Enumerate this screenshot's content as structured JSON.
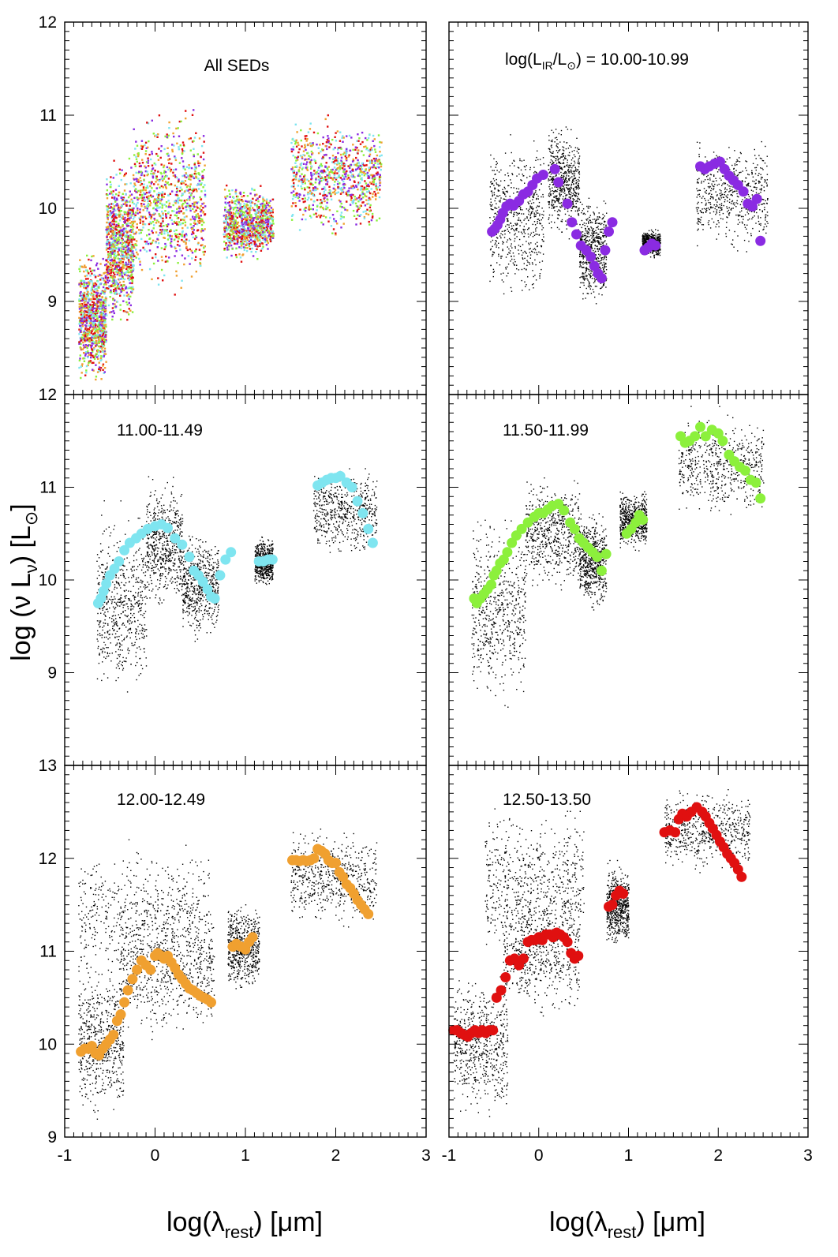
{
  "figure": {
    "ylabel_main": "log (ν L",
    "ylabel_sub": "ν",
    "ylabel_tail": ") [L",
    "ylabel_sun": "⊙",
    "ylabel_end": "]",
    "xlabel_left_main": "log(λ",
    "xlabel_left_sub": "rest",
    "xlabel_left_tail": ") [μm]",
    "xlabel_right_main": "log(λ",
    "xlabel_right_sub": "rest",
    "xlabel_right_tail": ") [μm]"
  },
  "chart_data": [
    {
      "type": "scatter",
      "panel": "top-left",
      "title": "All SEDs",
      "xlim": [
        -1,
        3
      ],
      "ylim": [
        8,
        12
      ],
      "yticks": [
        "9",
        "10",
        "11",
        "12"
      ],
      "xticks": [],
      "cloud": [
        {
          "x0": -0.85,
          "x1": -0.55,
          "ylo": 8.05,
          "yhi": 9.6
        },
        {
          "x0": -0.55,
          "x1": -0.25,
          "ylo": 8.6,
          "yhi": 10.6
        },
        {
          "x0": -0.25,
          "x1": 0.55,
          "ylo": 9.0,
          "yhi": 11.2
        },
        {
          "x0": 0.75,
          "x1": 1.3,
          "ylo": 9.4,
          "yhi": 10.3
        },
        {
          "x0": 1.5,
          "x1": 2.5,
          "ylo": 9.6,
          "yhi": 11.1
        }
      ],
      "series": [
        {
          "name": "10.00-10.99",
          "color": "#8a2be2"
        },
        {
          "name": "11.00-11.49",
          "color": "#7fe5f0"
        },
        {
          "name": "11.50-11.99",
          "color": "#8cf03c"
        },
        {
          "name": "12.00-12.49",
          "color": "#f0a030"
        },
        {
          "name": "12.50-13.50",
          "color": "#e01010"
        }
      ]
    },
    {
      "type": "scatter",
      "panel": "top-right",
      "title": "log(L",
      "title_sub": "IR",
      "title_mid": "/L",
      "title_sun": "⊙",
      "title_tail": ") = 10.00-10.99",
      "xlim": [
        -1,
        3
      ],
      "ylim": [
        8,
        12
      ],
      "yticks": [],
      "xticks": [],
      "color": "#8a2be2",
      "cloud": [
        {
          "x0": -0.55,
          "x1": 0.05,
          "ylo": 8.9,
          "yhi": 10.9
        },
        {
          "x0": 0.1,
          "x1": 0.45,
          "ylo": 9.6,
          "yhi": 11.0
        },
        {
          "x0": 0.45,
          "x1": 0.75,
          "ylo": 8.9,
          "yhi": 10.2
        },
        {
          "x0": 1.15,
          "x1": 1.35,
          "ylo": 9.45,
          "yhi": 9.8
        },
        {
          "x0": 1.75,
          "x1": 2.55,
          "ylo": 9.5,
          "yhi": 10.8
        }
      ],
      "x": [
        -0.52,
        -0.49,
        -0.46,
        -0.43,
        -0.4,
        -0.36,
        -0.32,
        -0.28,
        -0.22,
        -0.17,
        -0.12,
        -0.07,
        -0.02,
        0.05,
        0.18,
        0.22,
        0.32,
        0.37,
        0.42,
        0.47,
        0.53,
        0.58,
        0.62,
        0.66,
        0.7,
        0.74,
        0.78,
        0.82,
        1.18,
        1.22,
        1.26,
        1.3,
        1.8,
        1.85,
        1.9,
        1.96,
        2.02,
        2.07,
        2.12,
        2.17,
        2.22,
        2.28,
        2.33,
        2.38,
        2.43,
        2.47
      ],
      "y": [
        9.75,
        9.78,
        9.82,
        9.88,
        9.95,
        10.02,
        10.05,
        10.03,
        10.08,
        10.15,
        10.18,
        10.25,
        10.32,
        10.36,
        10.42,
        10.28,
        10.05,
        9.85,
        9.72,
        9.6,
        9.55,
        9.48,
        9.38,
        9.3,
        9.25,
        9.55,
        9.75,
        9.85,
        9.55,
        9.58,
        9.62,
        9.6,
        10.45,
        10.42,
        10.45,
        10.48,
        10.5,
        10.42,
        10.35,
        10.3,
        10.25,
        10.18,
        10.05,
        10.02,
        10.1,
        9.65
      ]
    },
    {
      "type": "scatter",
      "panel": "middle-left",
      "title": "11.00-11.49",
      "xlim": [
        -1,
        3
      ],
      "ylim": [
        8,
        12
      ],
      "yticks": [
        "9",
        "10",
        "11",
        "12"
      ],
      "xticks": [],
      "color": "#7fe5f0",
      "cloud": [
        {
          "x0": -0.65,
          "x1": -0.1,
          "ylo": 8.6,
          "yhi": 10.9
        },
        {
          "x0": -0.1,
          "x1": 0.3,
          "ylo": 9.6,
          "yhi": 11.2
        },
        {
          "x0": 0.3,
          "x1": 0.7,
          "ylo": 9.3,
          "yhi": 10.6
        },
        {
          "x0": 1.1,
          "x1": 1.3,
          "ylo": 9.9,
          "yhi": 10.5
        },
        {
          "x0": 1.75,
          "x1": 2.45,
          "ylo": 10.2,
          "yhi": 11.3
        }
      ],
      "x": [
        -0.63,
        -0.6,
        -0.57,
        -0.54,
        -0.5,
        -0.45,
        -0.4,
        -0.34,
        -0.28,
        -0.21,
        -0.15,
        -0.08,
        0.0,
        0.07,
        0.14,
        0.22,
        0.3,
        0.38,
        0.43,
        0.48,
        0.53,
        0.58,
        0.62,
        0.66,
        0.72,
        0.78,
        0.84,
        1.15,
        1.2,
        1.25,
        1.3,
        1.8,
        1.85,
        1.9,
        1.95,
        2.0,
        2.05,
        2.12,
        2.18,
        2.24,
        2.3,
        2.36,
        2.41
      ],
      "y": [
        9.75,
        9.8,
        9.88,
        9.96,
        10.05,
        10.12,
        10.2,
        10.32,
        10.4,
        10.45,
        10.5,
        10.55,
        10.58,
        10.6,
        10.56,
        10.45,
        10.38,
        10.25,
        10.1,
        10.05,
        9.98,
        9.9,
        9.82,
        9.8,
        10.05,
        10.22,
        10.3,
        10.2,
        10.2,
        10.22,
        10.22,
        11.02,
        11.05,
        11.08,
        11.1,
        11.1,
        11.12,
        11.05,
        11.0,
        10.85,
        10.72,
        10.55,
        10.4
      ]
    },
    {
      "type": "scatter",
      "panel": "middle-right",
      "title": "11.50-11.99",
      "xlim": [
        -1,
        3
      ],
      "ylim": [
        8,
        12
      ],
      "yticks": [],
      "xticks": [],
      "color": "#8cf03c",
      "cloud": [
        {
          "x0": -0.75,
          "x1": -0.15,
          "ylo": 8.5,
          "yhi": 10.9
        },
        {
          "x0": -0.15,
          "x1": 0.45,
          "ylo": 9.8,
          "yhi": 11.2
        },
        {
          "x0": 0.45,
          "x1": 0.75,
          "ylo": 9.6,
          "yhi": 10.8
        },
        {
          "x0": 0.9,
          "x1": 1.2,
          "ylo": 10.3,
          "yhi": 11.0
        },
        {
          "x0": 1.55,
          "x1": 2.5,
          "ylo": 10.6,
          "yhi": 11.9
        }
      ],
      "x": [
        -0.72,
        -0.69,
        -0.65,
        -0.61,
        -0.57,
        -0.53,
        -0.5,
        -0.47,
        -0.43,
        -0.39,
        -0.35,
        -0.3,
        -0.25,
        -0.19,
        -0.12,
        -0.05,
        0.0,
        0.05,
        0.1,
        0.15,
        0.22,
        0.28,
        0.35,
        0.4,
        0.45,
        0.5,
        0.55,
        0.6,
        0.65,
        0.7,
        0.75,
        0.98,
        1.03,
        1.08,
        1.12,
        1.16,
        1.58,
        1.63,
        1.68,
        1.74,
        1.8,
        1.86,
        1.93,
        2.0,
        2.05,
        2.12,
        2.18,
        2.24,
        2.3,
        2.36,
        2.42,
        2.47
      ],
      "y": [
        9.8,
        9.75,
        9.8,
        9.85,
        9.9,
        9.95,
        10.05,
        10.1,
        10.18,
        10.22,
        10.3,
        10.4,
        10.48,
        10.55,
        10.62,
        10.68,
        10.72,
        10.72,
        10.76,
        10.8,
        10.82,
        10.75,
        10.62,
        10.55,
        10.45,
        10.4,
        10.35,
        10.3,
        10.25,
        10.1,
        10.28,
        10.5,
        10.55,
        10.62,
        10.7,
        10.65,
        11.55,
        11.48,
        11.5,
        11.55,
        11.65,
        11.55,
        11.62,
        11.58,
        11.5,
        11.35,
        11.28,
        11.22,
        11.18,
        11.08,
        11.05,
        10.88
      ]
    },
    {
      "type": "scatter",
      "panel": "bottom-left",
      "title": "12.00-12.49",
      "xlim": [
        -1,
        3
      ],
      "ylim": [
        9,
        13
      ],
      "yticks": [
        "9",
        "10",
        "11",
        "12",
        "13"
      ],
      "xticks": [
        "-1",
        "0",
        "1",
        "2",
        "3"
      ],
      "color": "#f0a030",
      "cloud": [
        {
          "x0": -0.85,
          "x1": -0.35,
          "ylo": 9.1,
          "yhi": 11.0
        },
        {
          "x0": -0.4,
          "x1": 0.65,
          "ylo": 10.0,
          "yhi": 11.6
        },
        {
          "x0": -0.85,
          "x1": 0.6,
          "ylo": 10.5,
          "yhi": 12.3
        },
        {
          "x0": 0.8,
          "x1": 1.15,
          "ylo": 10.5,
          "yhi": 11.6
        },
        {
          "x0": 1.5,
          "x1": 2.45,
          "ylo": 11.2,
          "yhi": 12.4
        }
      ],
      "x": [
        -0.82,
        -0.78,
        -0.74,
        -0.7,
        -0.66,
        -0.62,
        -0.58,
        -0.54,
        -0.5,
        -0.46,
        -0.42,
        -0.38,
        -0.34,
        -0.3,
        -0.25,
        -0.2,
        -0.15,
        -0.1,
        -0.05,
        0.0,
        0.03,
        0.07,
        0.1,
        0.14,
        0.18,
        0.22,
        0.26,
        0.3,
        0.34,
        0.38,
        0.42,
        0.46,
        0.5,
        0.54,
        0.58,
        0.62,
        0.86,
        0.9,
        0.95,
        1.0,
        1.04,
        1.08,
        1.52,
        1.56,
        1.6,
        1.64,
        1.68,
        1.72,
        1.76,
        1.8,
        1.84,
        1.88,
        1.92,
        1.96,
        2.0,
        2.04,
        2.08,
        2.12,
        2.16,
        2.2,
        2.24,
        2.28,
        2.32,
        2.36
      ],
      "y": [
        9.92,
        9.95,
        9.95,
        9.98,
        9.9,
        9.88,
        9.95,
        10.0,
        10.05,
        10.1,
        10.25,
        10.32,
        10.45,
        10.58,
        10.7,
        10.8,
        10.9,
        10.85,
        10.8,
        10.95,
        10.98,
        10.95,
        10.92,
        10.95,
        10.88,
        10.82,
        10.75,
        10.7,
        10.65,
        10.6,
        10.58,
        10.55,
        10.52,
        10.5,
        10.48,
        10.45,
        11.05,
        11.08,
        11.05,
        11.02,
        11.1,
        11.15,
        11.98,
        11.98,
        11.97,
        11.98,
        11.97,
        11.98,
        12.0,
        12.1,
        12.08,
        12.05,
        11.98,
        11.95,
        11.95,
        11.85,
        11.8,
        11.72,
        11.68,
        11.62,
        11.55,
        11.5,
        11.45,
        11.4
      ]
    },
    {
      "type": "scatter",
      "panel": "bottom-right",
      "title": "12.50-13.50",
      "xlim": [
        -1,
        3
      ],
      "ylim": [
        9,
        13
      ],
      "yticks": [],
      "xticks": [
        "-1",
        "0",
        "1",
        "2",
        "3"
      ],
      "color": "#e01010",
      "cloud": [
        {
          "x0": -0.95,
          "x1": -0.35,
          "ylo": 9.1,
          "yhi": 10.9
        },
        {
          "x0": -0.4,
          "x1": 0.45,
          "ylo": 10.2,
          "yhi": 11.8
        },
        {
          "x0": -0.6,
          "x1": 0.5,
          "ylo": 10.8,
          "yhi": 12.7
        },
        {
          "x0": 0.75,
          "x1": 1.0,
          "ylo": 11.0,
          "yhi": 12.0
        },
        {
          "x0": 1.4,
          "x1": 2.35,
          "ylo": 11.8,
          "yhi": 12.8
        }
      ],
      "x": [
        -0.95,
        -0.91,
        -0.87,
        -0.83,
        -0.79,
        -0.75,
        -0.71,
        -0.67,
        -0.63,
        -0.59,
        -0.55,
        -0.51,
        -0.47,
        -0.42,
        -0.37,
        -0.32,
        -0.27,
        -0.22,
        -0.17,
        -0.12,
        -0.08,
        -0.04,
        0.0,
        0.04,
        0.08,
        0.12,
        0.16,
        0.2,
        0.24,
        0.28,
        0.32,
        0.36,
        0.4,
        0.44,
        0.78,
        0.82,
        0.86,
        0.9,
        0.94,
        1.4,
        1.46,
        1.52,
        1.56,
        1.6,
        1.65,
        1.7,
        1.76,
        1.82,
        1.86,
        1.9,
        1.94,
        1.98,
        2.02,
        2.06,
        2.1,
        2.14,
        2.18,
        2.22,
        2.26
      ],
      "y": [
        10.15,
        10.15,
        10.12,
        10.1,
        10.08,
        10.12,
        10.15,
        10.12,
        10.15,
        10.12,
        10.15,
        10.15,
        10.5,
        10.58,
        10.72,
        10.9,
        10.92,
        10.85,
        10.92,
        11.1,
        11.12,
        11.12,
        11.15,
        11.12,
        11.18,
        11.18,
        11.15,
        11.2,
        11.18,
        11.15,
        11.1,
        10.98,
        10.92,
        10.95,
        11.48,
        11.5,
        11.6,
        11.65,
        11.62,
        12.28,
        12.3,
        12.28,
        12.42,
        12.48,
        12.45,
        12.5,
        12.55,
        12.5,
        12.45,
        12.38,
        12.32,
        12.25,
        12.18,
        12.12,
        12.05,
        12.0,
        11.95,
        11.88,
        11.8
      ]
    }
  ]
}
